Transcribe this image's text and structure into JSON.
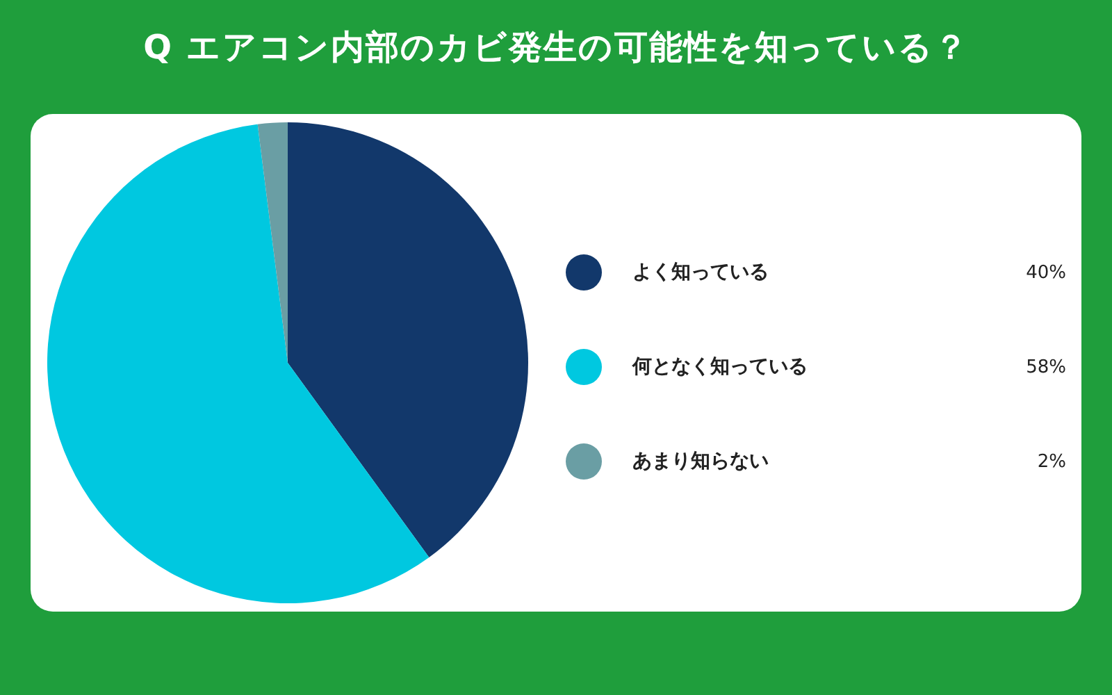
{
  "chart_data": {
    "type": "pie",
    "title": "Q エアコン内部のカビ発生の可能性を知っている？",
    "categories": [
      "よく知っている",
      "何となく知っている",
      "あまり知らない"
    ],
    "values": [
      40,
      58,
      2
    ],
    "colors": [
      "#12386b",
      "#00c8e0",
      "#6a9ea4"
    ],
    "value_labels": [
      "40%",
      "58%",
      "2%"
    ],
    "legend": "right"
  }
}
